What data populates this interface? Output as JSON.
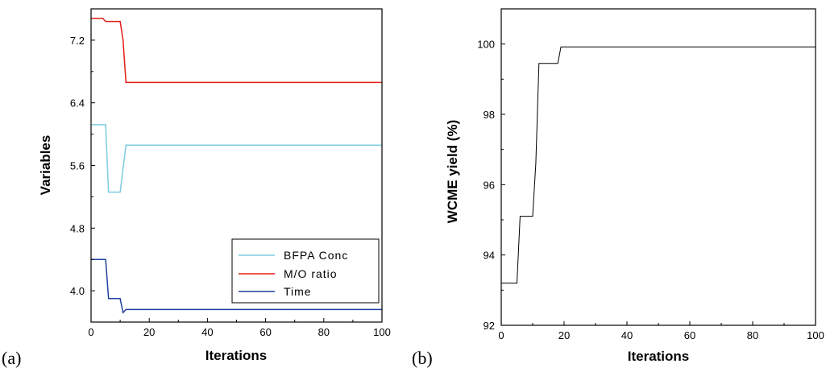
{
  "chart_data": [
    {
      "type": "line",
      "panel_label": "(a)",
      "xlabel": "Iterations",
      "ylabel": "Variables",
      "xlim": [
        0,
        100
      ],
      "ylim": [
        3.6,
        7.6
      ],
      "xticks": [
        "0",
        "20",
        "40",
        "60",
        "80",
        "100"
      ],
      "yticks": [
        "4.0",
        "4.8",
        "5.6",
        "6.4",
        "7.2"
      ],
      "legend_position": "bottom-right",
      "series": [
        {
          "name": "BFPA Conc",
          "color": "#7ecce0",
          "points": [
            [
              0,
              6.12
            ],
            [
              5,
              6.12
            ],
            [
              6,
              5.26
            ],
            [
              10,
              5.26
            ],
            [
              12,
              5.86
            ],
            [
              100,
              5.86
            ]
          ]
        },
        {
          "name": "M/O ratio",
          "color": "#e41b17",
          "points": [
            [
              0,
              7.48
            ],
            [
              4,
              7.48
            ],
            [
              5,
              7.44
            ],
            [
              10,
              7.44
            ],
            [
              11,
              7.2
            ],
            [
              12,
              6.66
            ],
            [
              100,
              6.66
            ]
          ]
        },
        {
          "name": "Time",
          "color": "#1f3f9f",
          "points": [
            [
              0,
              4.4
            ],
            [
              5,
              4.4
            ],
            [
              6,
              3.9
            ],
            [
              10,
              3.9
            ],
            [
              11,
              3.72
            ],
            [
              12,
              3.76
            ],
            [
              100,
              3.76
            ]
          ]
        }
      ]
    },
    {
      "type": "line",
      "panel_label": "(b)",
      "xlabel": "Iterations",
      "ylabel": "WCME yield (%)",
      "xlim": [
        0,
        100
      ],
      "ylim": [
        92,
        101
      ],
      "xticks": [
        "0",
        "20",
        "40",
        "60",
        "80",
        "100"
      ],
      "yticks": [
        "92",
        "94",
        "96",
        "98",
        "100"
      ],
      "series": [
        {
          "color": "#000000",
          "points": [
            [
              0,
              93.2
            ],
            [
              5,
              93.2
            ],
            [
              6,
              95.1
            ],
            [
              10,
              95.1
            ],
            [
              11,
              96.6
            ],
            [
              12,
              99.45
            ],
            [
              18,
              99.45
            ],
            [
              19,
              99.92
            ],
            [
              100,
              99.92
            ]
          ]
        }
      ]
    }
  ]
}
